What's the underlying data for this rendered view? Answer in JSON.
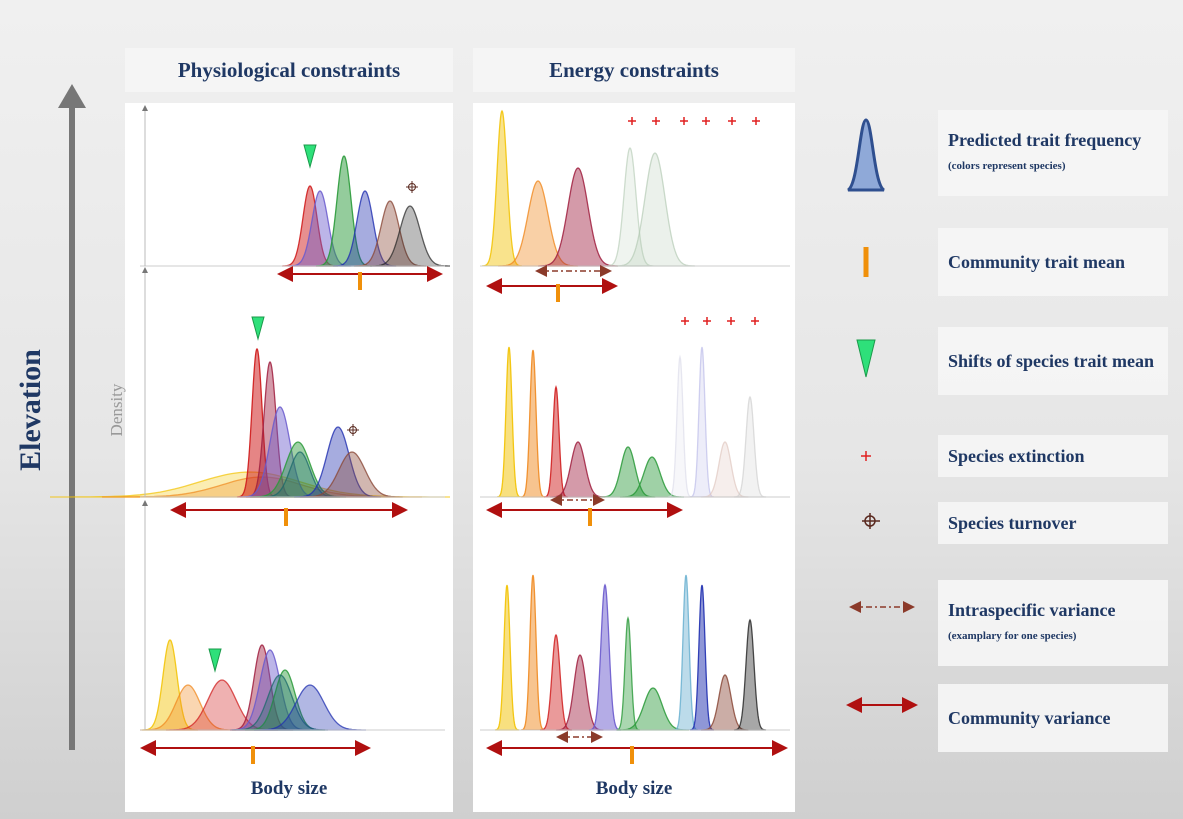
{
  "columns": [
    {
      "title": "Physiological constraints",
      "x_label": "Body size"
    },
    {
      "title": "Energy constraints",
      "x_label": "Body size"
    }
  ],
  "y_axis": {
    "label": "Elevation",
    "density_label": "Density"
  },
  "legend": [
    {
      "label": "Predicted trait frequency",
      "note": "(colors represent species)"
    },
    {
      "label": "Community trait mean"
    },
    {
      "label": "Shifts of species trait mean"
    },
    {
      "label": "Species extinction"
    },
    {
      "label": "Species turnover"
    },
    {
      "label": "Intraspecific variance",
      "note": "(examplary for one species)"
    },
    {
      "label": "Community variance"
    }
  ]
}
